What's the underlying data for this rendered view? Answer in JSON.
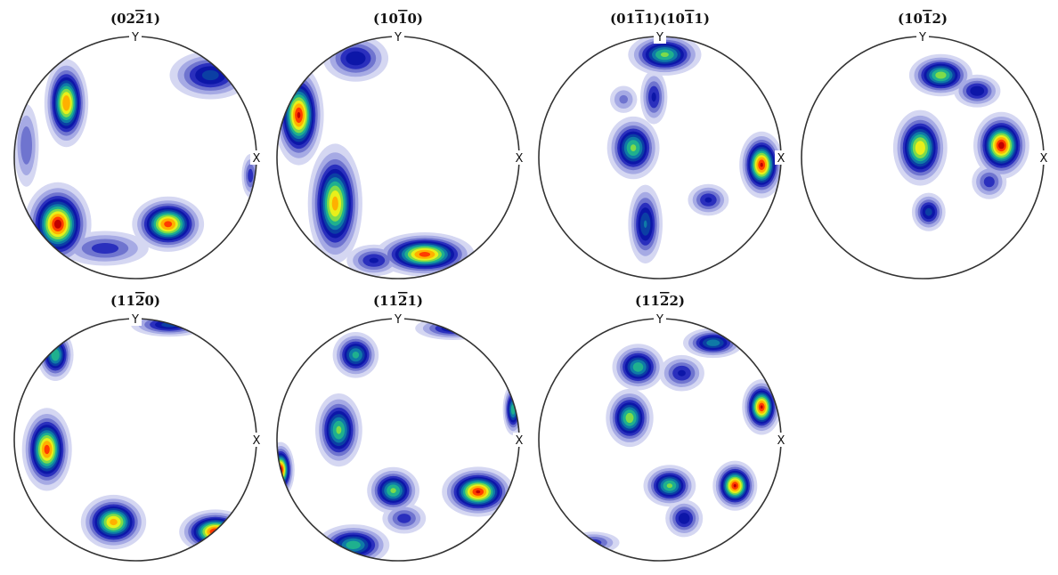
{
  "chart_data": {
    "type": "pole-figure",
    "projection": "equal-area, upper hemisphere",
    "colormap": [
      "#ffffff",
      "#d5d7f2",
      "#a6aae4",
      "#6f74cf",
      "#2a2fbd",
      "#0c16a8",
      "#0b3fa4",
      "#0f7aa6",
      "#1fb08e",
      "#7edb4a",
      "#e9ef1a",
      "#ffb000",
      "#ff3c00",
      "#c00000"
    ],
    "x_axis_label": "X",
    "y_axis_label": "Y",
    "panels": [
      {
        "title": "(02Ť2Ť1)",
        "title_parts": [
          {
            "t": "(02"
          },
          {
            "t": "2",
            "bar": true
          },
          {
            "t": "1)"
          }
        ],
        "peaks": [
          {
            "x": -0.57,
            "y": 0.45,
            "v": 0.92,
            "sx": 0.08,
            "sy": 0.16
          },
          {
            "x": -0.64,
            "y": -0.55,
            "v": 1.0,
            "sx": 0.12,
            "sy": 0.15
          },
          {
            "x": 0.27,
            "y": -0.55,
            "v": 0.95,
            "sx": 0.13,
            "sy": 0.1
          },
          {
            "x": 0.62,
            "y": 0.68,
            "v": 0.5,
            "sx": 0.17,
            "sy": 0.1
          },
          {
            "x": -0.25,
            "y": -0.75,
            "v": 0.35,
            "sx": 0.2,
            "sy": 0.08
          },
          {
            "x": -0.9,
            "y": 0.1,
            "v": 0.3,
            "sx": 0.06,
            "sy": 0.2
          },
          {
            "x": 0.95,
            "y": -0.15,
            "v": 0.35,
            "sx": 0.04,
            "sy": 0.1
          }
        ]
      },
      {
        "title": "(10Ť1Ť0)",
        "title_parts": [
          {
            "t": "(10"
          },
          {
            "t": "1",
            "bar": true
          },
          {
            "t": "0)"
          }
        ],
        "peaks": [
          {
            "x": -0.82,
            "y": 0.35,
            "v": 0.98,
            "sx": 0.09,
            "sy": 0.18
          },
          {
            "x": -0.52,
            "y": -0.38,
            "v": 0.88,
            "sx": 0.1,
            "sy": 0.22
          },
          {
            "x": 0.22,
            "y": -0.8,
            "v": 0.95,
            "sx": 0.18,
            "sy": 0.08
          },
          {
            "x": -0.35,
            "y": 0.82,
            "v": 0.45,
            "sx": 0.14,
            "sy": 0.1
          },
          {
            "x": -0.2,
            "y": -0.85,
            "v": 0.4,
            "sx": 0.12,
            "sy": 0.07
          }
        ]
      },
      {
        "title": "(01Ť1Ť1)(10Ť1Ť1)",
        "title_parts": [
          {
            "t": "(01"
          },
          {
            "t": "1",
            "bar": true
          },
          {
            "t": "1)(10"
          },
          {
            "t": "1",
            "bar": true
          },
          {
            "t": "1)"
          }
        ],
        "peaks": [
          {
            "x": 0.04,
            "y": 0.85,
            "v": 0.72,
            "sx": 0.14,
            "sy": 0.08
          },
          {
            "x": -0.22,
            "y": 0.08,
            "v": 0.72,
            "sx": 0.1,
            "sy": 0.12
          },
          {
            "x": -0.12,
            "y": -0.55,
            "v": 0.55,
            "sx": 0.07,
            "sy": 0.16
          },
          {
            "x": 0.84,
            "y": -0.06,
            "v": 0.98,
            "sx": 0.08,
            "sy": 0.12
          },
          {
            "x": 0.4,
            "y": -0.35,
            "v": 0.4,
            "sx": 0.09,
            "sy": 0.07
          },
          {
            "x": -0.05,
            "y": 0.5,
            "v": 0.4,
            "sx": 0.06,
            "sy": 0.12
          },
          {
            "x": -0.3,
            "y": 0.48,
            "v": 0.25,
            "sx": 0.07,
            "sy": 0.07
          }
        ]
      },
      {
        "title": "(10Ť1Ť2)",
        "title_parts": [
          {
            "t": "(10"
          },
          {
            "t": "1",
            "bar": true
          },
          {
            "t": "2)"
          }
        ],
        "peaks": [
          {
            "x": 0.15,
            "y": 0.68,
            "v": 0.75,
            "sx": 0.12,
            "sy": 0.08
          },
          {
            "x": -0.02,
            "y": 0.08,
            "v": 0.85,
            "sx": 0.1,
            "sy": 0.14
          },
          {
            "x": 0.05,
            "y": -0.45,
            "v": 0.5,
            "sx": 0.07,
            "sy": 0.08
          },
          {
            "x": 0.65,
            "y": 0.1,
            "v": 1.0,
            "sx": 0.1,
            "sy": 0.12
          },
          {
            "x": 0.45,
            "y": 0.55,
            "v": 0.45,
            "sx": 0.1,
            "sy": 0.07
          },
          {
            "x": 0.55,
            "y": -0.2,
            "v": 0.35,
            "sx": 0.08,
            "sy": 0.08
          }
        ]
      },
      {
        "title": "(11Ť2Ť0)",
        "title_parts": [
          {
            "t": "(11"
          },
          {
            "t": "2",
            "bar": true
          },
          {
            "t": "0)"
          }
        ],
        "peaks": [
          {
            "x": -0.73,
            "y": -0.08,
            "v": 0.95,
            "sx": 0.09,
            "sy": 0.15
          },
          {
            "x": -0.18,
            "y": -0.68,
            "v": 0.88,
            "sx": 0.12,
            "sy": 0.1
          },
          {
            "x": 0.66,
            "y": -0.76,
            "v": 0.98,
            "sx": 0.13,
            "sy": 0.08
          },
          {
            "x": -0.66,
            "y": 0.7,
            "v": 0.7,
            "sx": 0.07,
            "sy": 0.1
          },
          {
            "x": 0.28,
            "y": 0.95,
            "v": 0.5,
            "sx": 0.16,
            "sy": 0.05
          }
        ]
      },
      {
        "title": "(11Ť2Ť1)",
        "title_parts": [
          {
            "t": "(11"
          },
          {
            "t": "2",
            "bar": true
          },
          {
            "t": "1)"
          }
        ],
        "peaks": [
          {
            "x": -0.35,
            "y": 0.7,
            "v": 0.65,
            "sx": 0.09,
            "sy": 0.09
          },
          {
            "x": -0.49,
            "y": 0.08,
            "v": 0.72,
            "sx": 0.09,
            "sy": 0.14
          },
          {
            "x": -0.97,
            "y": -0.25,
            "v": 1.0,
            "sx": 0.05,
            "sy": 0.1
          },
          {
            "x": -0.37,
            "y": -0.87,
            "v": 0.68,
            "sx": 0.14,
            "sy": 0.08
          },
          {
            "x": -0.04,
            "y": -0.42,
            "v": 0.72,
            "sx": 0.1,
            "sy": 0.09
          },
          {
            "x": 0.66,
            "y": -0.43,
            "v": 0.98,
            "sx": 0.13,
            "sy": 0.09
          },
          {
            "x": 0.95,
            "y": 0.25,
            "v": 0.68,
            "sx": 0.04,
            "sy": 0.1
          },
          {
            "x": 0.45,
            "y": 0.92,
            "v": 0.45,
            "sx": 0.16,
            "sy": 0.05
          },
          {
            "x": 0.05,
            "y": -0.65,
            "v": 0.35,
            "sx": 0.1,
            "sy": 0.07
          }
        ]
      },
      {
        "title": "(11Ť2Ť2)",
        "title_parts": [
          {
            "t": "(11"
          },
          {
            "t": "2",
            "bar": true
          },
          {
            "t": "2)"
          }
        ],
        "peaks": [
          {
            "x": -0.18,
            "y": 0.6,
            "v": 0.68,
            "sx": 0.1,
            "sy": 0.09
          },
          {
            "x": -0.25,
            "y": 0.18,
            "v": 0.75,
            "sx": 0.09,
            "sy": 0.11
          },
          {
            "x": 0.08,
            "y": -0.38,
            "v": 0.72,
            "sx": 0.1,
            "sy": 0.08
          },
          {
            "x": 0.62,
            "y": -0.38,
            "v": 0.98,
            "sx": 0.08,
            "sy": 0.09
          },
          {
            "x": 0.84,
            "y": 0.27,
            "v": 0.98,
            "sx": 0.07,
            "sy": 0.1
          },
          {
            "x": 0.44,
            "y": 0.8,
            "v": 0.6,
            "sx": 0.12,
            "sy": 0.06
          },
          {
            "x": 0.2,
            "y": -0.65,
            "v": 0.45,
            "sx": 0.08,
            "sy": 0.08
          },
          {
            "x": 0.18,
            "y": 0.55,
            "v": 0.4,
            "sx": 0.1,
            "sy": 0.08
          },
          {
            "x": -0.55,
            "y": -0.85,
            "v": 0.35,
            "sx": 0.12,
            "sy": 0.05
          }
        ]
      }
    ]
  }
}
